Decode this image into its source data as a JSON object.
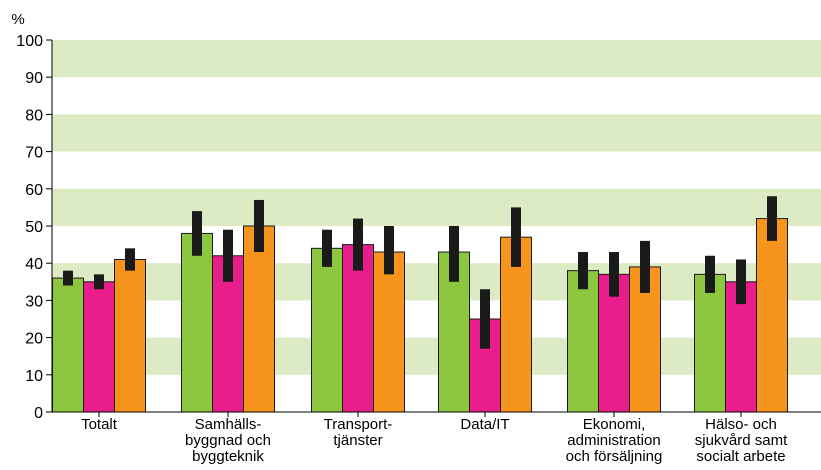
{
  "chart_data": {
    "type": "bar",
    "ylabel": "%",
    "ylim": [
      0,
      100
    ],
    "yticks": [
      0,
      10,
      20,
      30,
      40,
      50,
      60,
      70,
      80,
      90,
      100
    ],
    "grid": "alternating horizontal bands",
    "legend": "none",
    "categories": [
      [
        "Totalt"
      ],
      [
        "Samhälls-",
        "byggnad och",
        "byggteknik"
      ],
      [
        "Transport-",
        "tjänster"
      ],
      [
        "Data/IT"
      ],
      [
        "Ekonomi,",
        "administration",
        "och försäljning"
      ],
      [
        "Hälso- och",
        "sjukvård samt",
        "socialt arbete"
      ]
    ],
    "series": [
      {
        "color": "#8dc63f",
        "values": [
          36,
          48,
          44,
          43,
          38,
          37
        ],
        "err_low": [
          34,
          42,
          39,
          35,
          33,
          32
        ],
        "err_high": [
          38,
          54,
          49,
          50,
          43,
          42
        ]
      },
      {
        "color": "#e91e8c",
        "values": [
          35,
          42,
          45,
          25,
          37,
          35
        ],
        "err_low": [
          33,
          35,
          38,
          17,
          31,
          29
        ],
        "err_high": [
          37,
          49,
          52,
          33,
          43,
          41
        ]
      },
      {
        "color": "#f7941d",
        "values": [
          41,
          50,
          43,
          47,
          39,
          52
        ],
        "err_low": [
          38,
          43,
          37,
          39,
          32,
          46
        ],
        "err_high": [
          44,
          57,
          50,
          55,
          46,
          58
        ]
      }
    ],
    "colors": {
      "band": "#dcebc4",
      "errorbar": "#1a1a1a"
    }
  }
}
